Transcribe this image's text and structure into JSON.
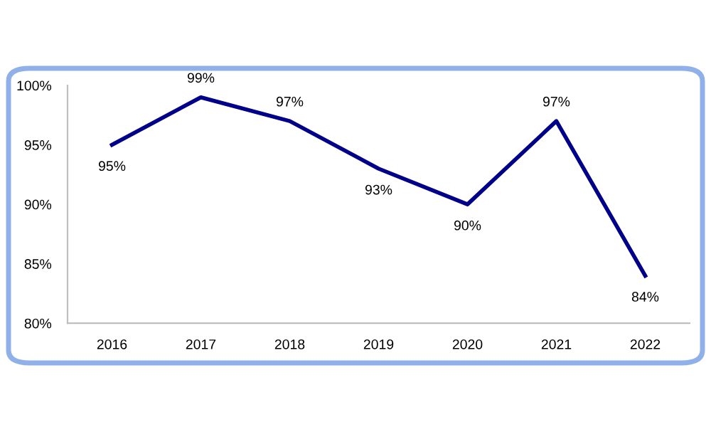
{
  "chart_data": {
    "type": "line",
    "categories": [
      "2016",
      "2017",
      "2018",
      "2019",
      "2020",
      "2021",
      "2022"
    ],
    "values": [
      95,
      99,
      97,
      93,
      90,
      97,
      84
    ],
    "value_labels": [
      "95%",
      "99%",
      "97%",
      "93%",
      "90%",
      "97%",
      "84%"
    ],
    "color": "#00008b",
    "marker": "none",
    "line_style": "solid",
    "grid": false,
    "legend": false,
    "ylim": [
      80,
      100
    ],
    "yticks": [
      {
        "value": 80,
        "label": "80%"
      },
      {
        "value": 85,
        "label": "85%"
      },
      {
        "value": 90,
        "label": "90%"
      },
      {
        "value": 95,
        "label": "95%"
      },
      {
        "value": 100,
        "label": "100%"
      }
    ]
  }
}
